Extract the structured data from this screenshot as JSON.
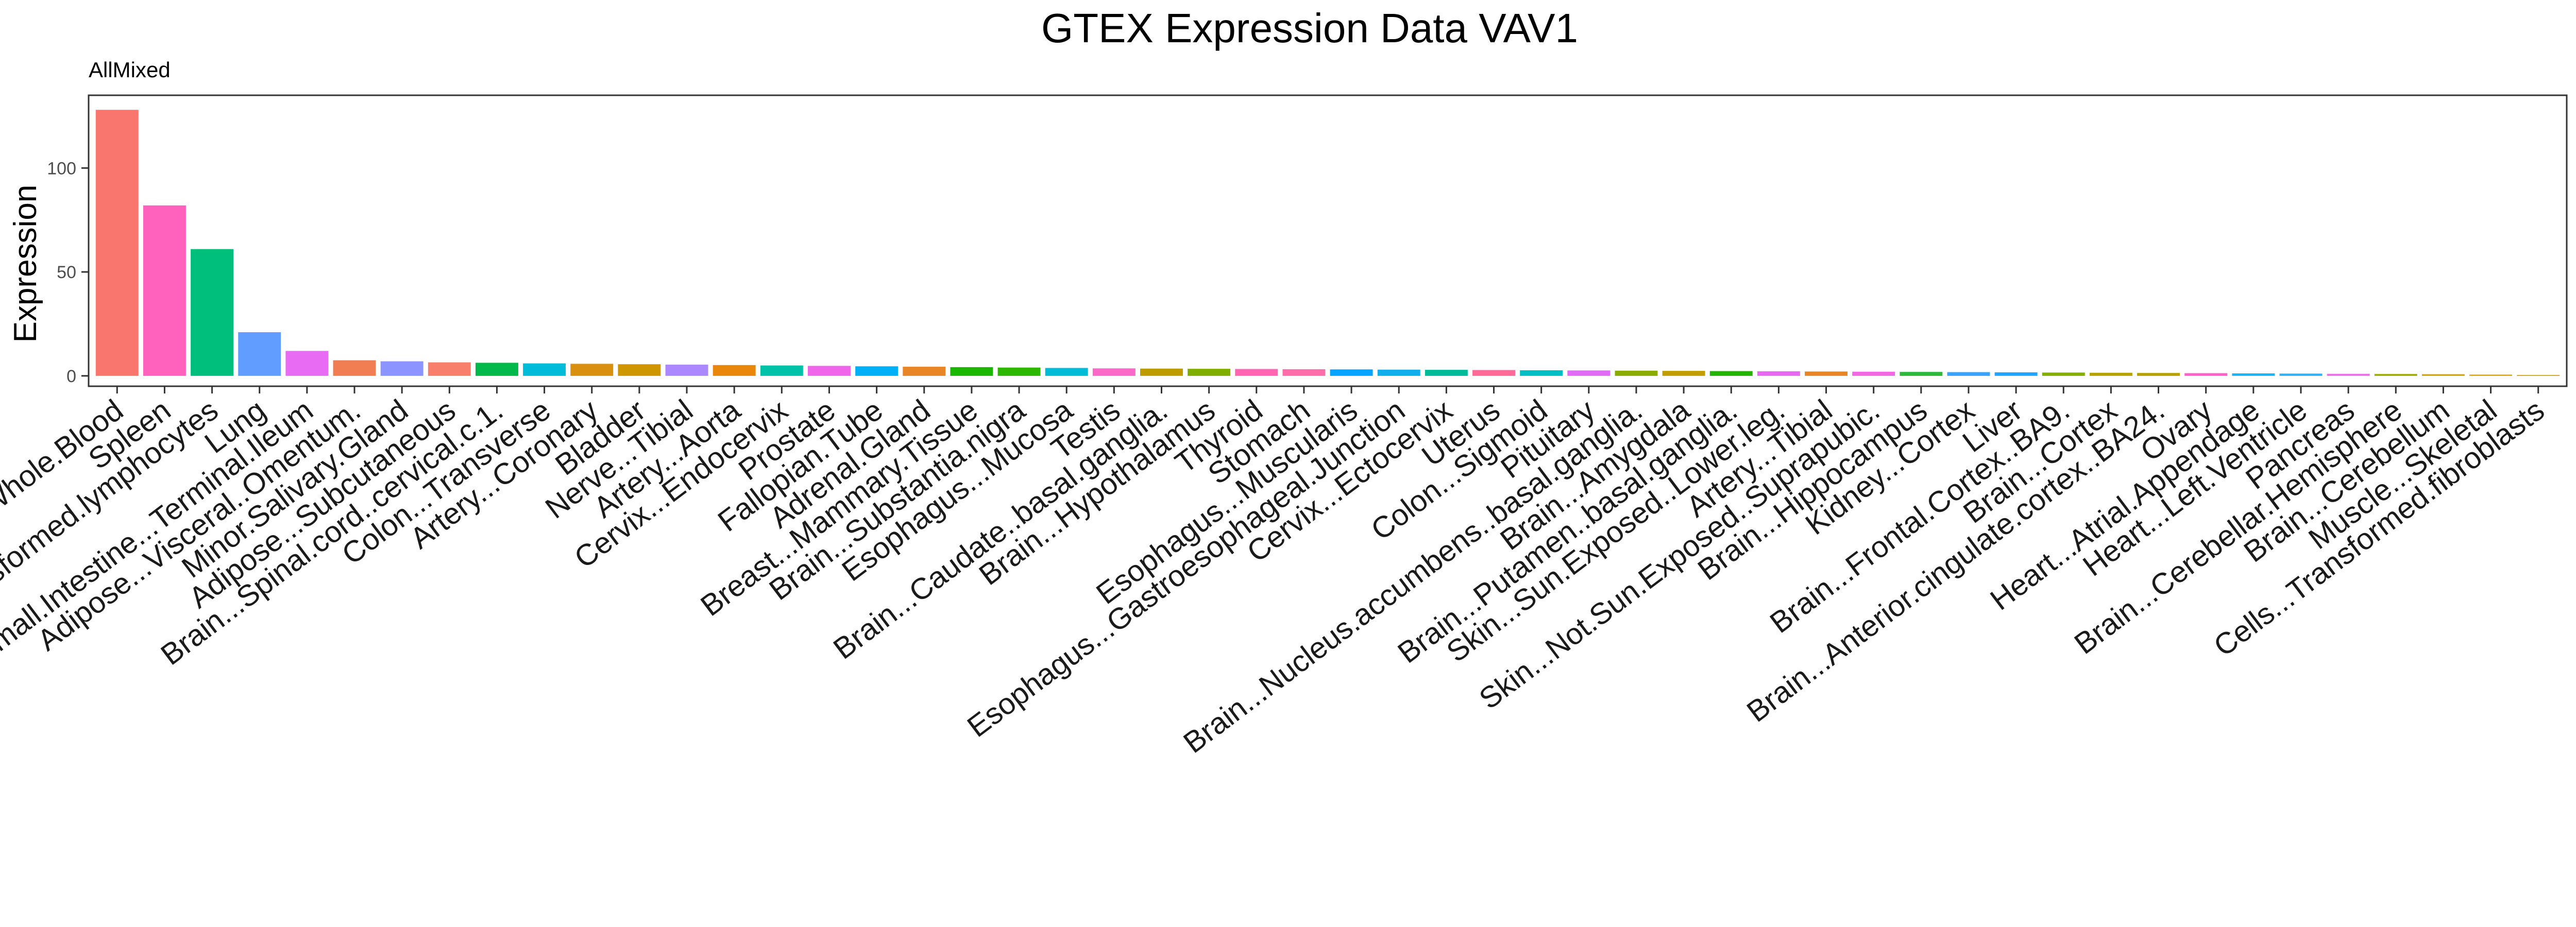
{
  "chart_data": {
    "type": "bar",
    "title": "GTEX Expression Data VAV1",
    "subtitle": "AllMixed",
    "xlabel": "",
    "ylabel": "Expression",
    "ylim": [
      -5,
      135
    ],
    "yticks": [
      0,
      50,
      100
    ],
    "grid": false,
    "legend": "none",
    "categories": [
      "Whole.Blood",
      "Spleen",
      "Cells...EBV.transformed.lymphocytes",
      "Lung",
      "Small.Intestine...Terminal.Ileum",
      "Adipose...Visceral..Omentum.",
      "Minor.Salivary.Gland",
      "Adipose...Subcutaneous",
      "Brain...Spinal.cord..cervical.c.1.",
      "Colon...Transverse",
      "Artery...Coronary",
      "Bladder",
      "Nerve...Tibial",
      "Artery...Aorta",
      "Cervix...Endocervix",
      "Prostate",
      "Fallopian.Tube",
      "Adrenal.Gland",
      "Breast...Mammary.Tissue",
      "Brain...Substantia.nigra",
      "Esophagus...Mucosa",
      "Testis",
      "Brain...Caudate..basal.ganglia.",
      "Brain...Hypothalamus",
      "Thyroid",
      "Stomach",
      "Esophagus...Muscularis",
      "Esophagus...Gastroesophageal.Junction",
      "Cervix...Ectocervix",
      "Uterus",
      "Colon...Sigmoid",
      "Pituitary",
      "Brain...Nucleus.accumbens..basal.ganglia.",
      "Brain...Amygdala",
      "Brain...Putamen..basal.ganglia.",
      "Skin...Sun.Exposed..Lower.leg.",
      "Artery...Tibial",
      "Skin...Not.Sun.Exposed..Suprapubic.",
      "Brain...Hippocampus",
      "Kidney...Cortex",
      "Liver",
      "Brain...Frontal.Cortex..BA9.",
      "Brain...Cortex",
      "Brain...Anterior.cingulate.cortex..BA24.",
      "Ovary",
      "Heart...Atrial.Appendage",
      "Heart...Left.Ventricle",
      "Pancreas",
      "Brain...Cerebellar.Hemisphere",
      "Brain...Cerebellum",
      "Muscle...Skeletal",
      "Cells...Transformed.fibroblasts"
    ],
    "values": [
      128,
      82,
      61,
      21,
      12,
      7.5,
      7,
      6.5,
      6.3,
      6,
      5.8,
      5.6,
      5.4,
      5.2,
      5,
      4.8,
      4.6,
      4.4,
      4.2,
      4,
      3.8,
      3.6,
      3.5,
      3.4,
      3.3,
      3.2,
      3.1,
      3,
      2.9,
      2.8,
      2.7,
      2.6,
      2.5,
      2.4,
      2.3,
      2.2,
      2.1,
      2,
      1.9,
      1.8,
      1.7,
      1.6,
      1.5,
      1.4,
      1.3,
      1.2,
      1.1,
      1,
      0.9,
      0.8,
      0.6,
      0.4
    ],
    "colors": [
      "#F8766D",
      "#FF62BC",
      "#00BF7D",
      "#619CFF",
      "#E76BF3",
      "#F17E53",
      "#8C94FF",
      "#F77F6B",
      "#00B94A",
      "#00BCD8",
      "#D98F0F",
      "#CE9600",
      "#AC88FF",
      "#E8870A",
      "#00C2A9",
      "#F066EA",
      "#00B0F6",
      "#E88527",
      "#1BB700",
      "#2DB800",
      "#00BCD6",
      "#FA68C8",
      "#BE9C00",
      "#7FAE00",
      "#FF64B3",
      "#FC6DAA",
      "#06A4FF",
      "#10AEEA",
      "#00BB9A",
      "#FF6998",
      "#00BFC4",
      "#E16BF6",
      "#8BAB00",
      "#C09E00",
      "#24B300",
      "#E66AF0",
      "#E88626",
      "#F067E8",
      "#2EB83A",
      "#3AA3FF",
      "#1FA7FF",
      "#84AE00",
      "#B6A200",
      "#B8A000",
      "#FF61C7",
      "#18B6F3",
      "#31B1F5",
      "#EB71E5",
      "#9DAA00",
      "#D9A100",
      "#D8A400",
      "#C79A00"
    ]
  }
}
